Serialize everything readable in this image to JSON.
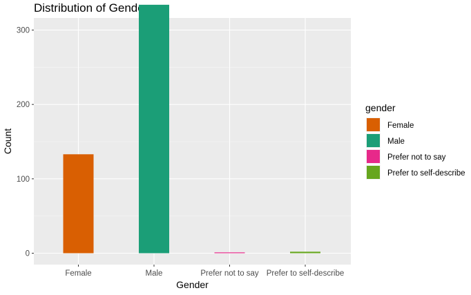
{
  "chart_data": {
    "type": "bar",
    "title": "Distribution of Gender",
    "xlabel": "Gender",
    "ylabel": "Count",
    "categories": [
      "Female",
      "Male",
      "Prefer not to say",
      "Prefer to self-describe"
    ],
    "values": [
      133,
      334,
      1,
      2
    ],
    "colors": [
      "#D95F02",
      "#1B9E77",
      "#E7298A",
      "#66A61E"
    ],
    "ylim": [
      0,
      350
    ],
    "yticks": [
      0,
      100,
      200,
      300
    ],
    "grid": true,
    "legend": {
      "title": "gender",
      "position": "right",
      "entries": [
        "Female",
        "Male",
        "Prefer not to say",
        "Prefer to self-describe"
      ]
    }
  }
}
